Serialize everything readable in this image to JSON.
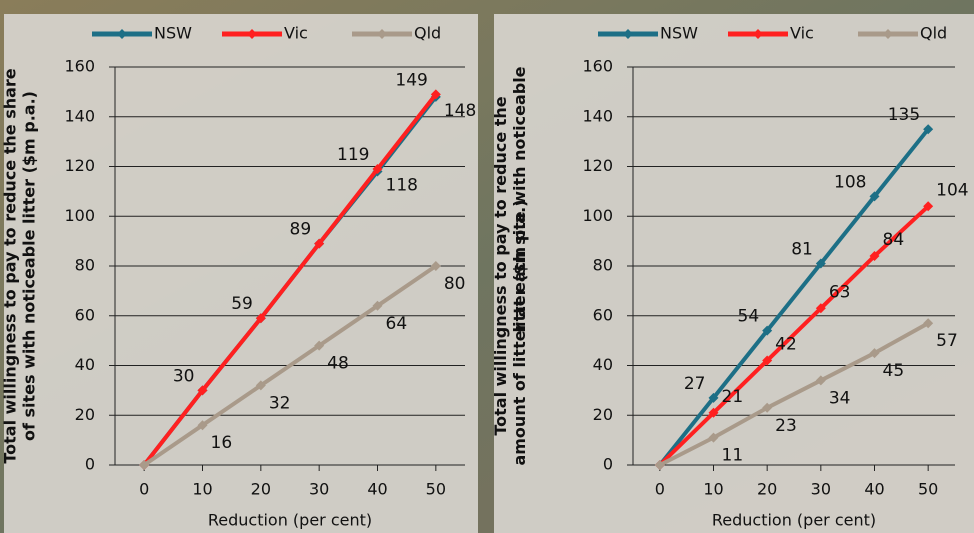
{
  "chart_data": [
    {
      "type": "line",
      "ylabel": [
        "Total willingness to pay to reduce the share",
        "of sites with noticeable litter ($m p.a.)"
      ],
      "xlabel": "Reduction (per cent)",
      "x": [
        0,
        10,
        20,
        30,
        40,
        50
      ],
      "xlim": [
        -5,
        55
      ],
      "xticks": [
        0,
        10,
        20,
        30,
        40,
        50
      ],
      "ylim": [
        0,
        160
      ],
      "yticks": [
        0,
        20,
        40,
        60,
        80,
        100,
        120,
        140,
        160
      ],
      "grid": true,
      "legend": "top",
      "series": [
        {
          "name": "NSW",
          "color": "#1d6f86",
          "values": [
            0,
            30,
            59,
            89,
            118,
            148
          ]
        },
        {
          "name": "Vic",
          "color": "#ff2020",
          "values": [
            0,
            30,
            59,
            89,
            119,
            149
          ]
        },
        {
          "name": "Qld",
          "color": "#a99a8a",
          "values": [
            0,
            16,
            32,
            48,
            64,
            80
          ]
        }
      ]
    },
    {
      "type": "line",
      "ylabel": [
        "Total willingness to pay to reduce the",
        "amount of litter at each site with noticeable",
        "litter ($m p.a.)"
      ],
      "xlabel": "Reduction (per cent)",
      "x": [
        0,
        10,
        20,
        30,
        40,
        50
      ],
      "xlim": [
        -5,
        55
      ],
      "xticks": [
        0,
        10,
        20,
        30,
        40,
        50
      ],
      "ylim": [
        0,
        160
      ],
      "yticks": [
        0,
        20,
        40,
        60,
        80,
        100,
        120,
        140,
        160
      ],
      "grid": true,
      "legend": "top",
      "series": [
        {
          "name": "NSW",
          "color": "#1d6f86",
          "values": [
            0,
            27,
            54,
            81,
            108,
            135
          ]
        },
        {
          "name": "Vic",
          "color": "#ff2020",
          "values": [
            0,
            21,
            42,
            63,
            84,
            104
          ]
        },
        {
          "name": "Qld",
          "color": "#a99a8a",
          "values": [
            0,
            11,
            23,
            34,
            45,
            57
          ]
        }
      ]
    }
  ]
}
